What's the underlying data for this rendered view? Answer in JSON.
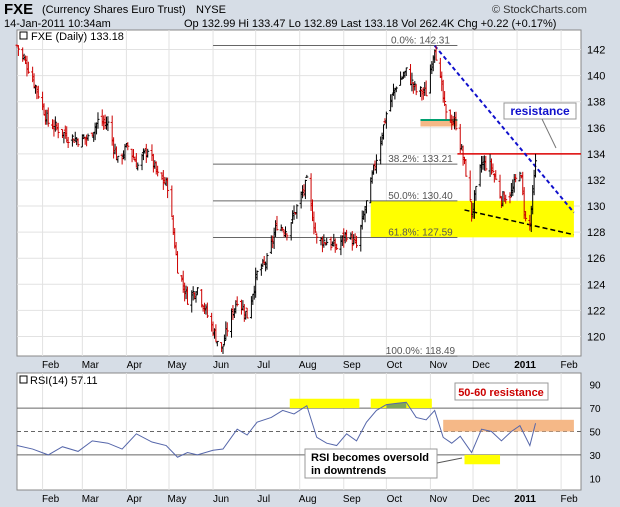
{
  "header": {
    "symbol": "FXE",
    "description": "(Currency Shares Euro Trust)",
    "exchange": "NYSE",
    "credit": "© StockCharts.com",
    "date": "14-Jan-2011 10:34am",
    "quote": "Op 132.99  Hi 133.47  Lo 132.89  Last 133.18  Vol 262.4K  Chg +0.22 (+0.17%)"
  },
  "colors": {
    "up": "#000000",
    "down": "#cc0000",
    "trendline": "#1010cc",
    "resistance_line": "#dd0000",
    "fib_line": "#666666",
    "yellow_zone": "#ffff00",
    "orange_zone": "#f5b887",
    "green_line": "#00a070",
    "rsi_line": "#5566aa",
    "rsi_fill": "#5f8f6f"
  },
  "chart_data": [
    {
      "type": "bar",
      "subtype": "ohlc",
      "legend": "FXE (Daily) 133.18",
      "ylim": [
        118.5,
        143.5
      ],
      "yticks": [
        120,
        122,
        124,
        126,
        128,
        130,
        132,
        134,
        136,
        138,
        140,
        142
      ],
      "xlabels": [
        "Feb",
        "Mar",
        "Apr",
        "May",
        "Jun",
        "Jul",
        "Aug",
        "Sep",
        "Oct",
        "Nov",
        "Dec",
        "2011",
        "Feb"
      ],
      "x_range": [
        "2010-01-14",
        "2011-02-15"
      ],
      "month_ticks": [
        "2010-02-01",
        "2010-03-01",
        "2010-04-01",
        "2010-05-01",
        "2010-06-01",
        "2010-07-01",
        "2010-08-01",
        "2010-09-01",
        "2010-10-01",
        "2010-11-01",
        "2010-12-01",
        "2011-01-01",
        "2011-02-01"
      ],
      "closes": [
        {
          "date": "2010-01-14",
          "close": 142.3
        },
        {
          "date": "2010-01-22",
          "close": 140.6
        },
        {
          "date": "2010-01-29",
          "close": 138.6
        },
        {
          "date": "2010-02-05",
          "close": 136.4
        },
        {
          "date": "2010-02-12",
          "close": 135.9
        },
        {
          "date": "2010-02-19",
          "close": 135.3
        },
        {
          "date": "2010-02-26",
          "close": 135.1
        },
        {
          "date": "2010-03-05",
          "close": 135.2
        },
        {
          "date": "2010-03-12",
          "close": 136.5
        },
        {
          "date": "2010-03-19",
          "close": 136.3
        },
        {
          "date": "2010-03-26",
          "close": 133.4
        },
        {
          "date": "2010-04-02",
          "close": 134.6
        },
        {
          "date": "2010-04-09",
          "close": 133.1
        },
        {
          "date": "2010-04-16",
          "close": 134.4
        },
        {
          "date": "2010-04-23",
          "close": 132.3
        },
        {
          "date": "2010-04-30",
          "close": 131.6
        },
        {
          "date": "2010-05-07",
          "close": 125.3
        },
        {
          "date": "2010-05-14",
          "close": 122.9
        },
        {
          "date": "2010-05-21",
          "close": 123.7
        },
        {
          "date": "2010-05-28",
          "close": 121.6
        },
        {
          "date": "2010-06-07",
          "close": 118.9
        },
        {
          "date": "2010-06-11",
          "close": 120.6
        },
        {
          "date": "2010-06-18",
          "close": 122.9
        },
        {
          "date": "2010-06-25",
          "close": 121.6
        },
        {
          "date": "2010-07-02",
          "close": 124.8
        },
        {
          "date": "2010-07-09",
          "close": 125.8
        },
        {
          "date": "2010-07-16",
          "close": 128.6
        },
        {
          "date": "2010-07-23",
          "close": 128.1
        },
        {
          "date": "2010-07-30",
          "close": 129.9
        },
        {
          "date": "2010-08-06",
          "close": 131.8
        },
        {
          "date": "2010-08-13",
          "close": 127.4
        },
        {
          "date": "2010-08-20",
          "close": 127.3
        },
        {
          "date": "2010-08-27",
          "close": 126.8
        },
        {
          "date": "2010-09-03",
          "close": 127.9
        },
        {
          "date": "2010-09-10",
          "close": 126.9
        },
        {
          "date": "2010-09-17",
          "close": 130.2
        },
        {
          "date": "2010-09-24",
          "close": 133.7
        },
        {
          "date": "2010-10-01",
          "close": 137.1
        },
        {
          "date": "2010-10-08",
          "close": 139.3
        },
        {
          "date": "2010-10-15",
          "close": 140.3
        },
        {
          "date": "2010-10-22",
          "close": 138.8
        },
        {
          "date": "2010-10-29",
          "close": 138.7
        },
        {
          "date": "2010-11-04",
          "close": 142.3
        },
        {
          "date": "2010-11-12",
          "close": 136.9
        },
        {
          "date": "2010-11-19",
          "close": 136.3
        },
        {
          "date": "2010-11-26",
          "close": 132.6
        },
        {
          "date": "2010-11-30",
          "close": 129.4
        },
        {
          "date": "2010-12-07",
          "close": 133.3
        },
        {
          "date": "2010-12-14",
          "close": 133.0
        },
        {
          "date": "2010-12-21",
          "close": 130.6
        },
        {
          "date": "2010-12-28",
          "close": 131.0
        },
        {
          "date": "2011-01-03",
          "close": 132.9
        },
        {
          "date": "2011-01-07",
          "close": 128.9
        },
        {
          "date": "2011-01-10",
          "close": 128.6
        },
        {
          "date": "2011-01-14",
          "close": 133.2
        }
      ],
      "fib_levels": [
        {
          "label": "0.0%: 142.31",
          "value": 142.31
        },
        {
          "label": "38.2%: 133.21",
          "value": 133.21
        },
        {
          "label": "50.0%: 130.40",
          "value": 130.4
        },
        {
          "label": "61.8%: 127.59",
          "value": 127.59
        },
        {
          "label": "100.0%: 118.49",
          "value": 118.49
        }
      ],
      "annotations": {
        "resistance_label": "resistance",
        "resistance_level": 134.0,
        "yellow_zone": {
          "from_date": "2010-09-20",
          "to_date": "2011-02-10",
          "low": 127.6,
          "high": 130.4
        },
        "orange_zone": {
          "from_date": "2010-10-25",
          "to_date": "2010-11-20",
          "low": 136.1,
          "high": 136.6
        },
        "green_line": {
          "from_date": "2010-10-25",
          "to_date": "2010-11-20",
          "value": 136.6
        },
        "trendline": {
          "from_date": "2010-11-04",
          "from_value": 142.3,
          "to_date": "2011-02-10",
          "to_value": 129.5
        },
        "support_trendline": {
          "from_date": "2010-11-25",
          "from_value": 129.7,
          "to_date": "2011-02-10",
          "to_value": 127.8
        }
      }
    },
    {
      "type": "line",
      "legend": "RSI(14) 57.11",
      "ylim": [
        0,
        100
      ],
      "yticks": [
        10,
        30,
        50,
        70,
        90
      ],
      "reference_lines": [
        30,
        50,
        70
      ],
      "rsi": [
        {
          "date": "2010-01-14",
          "value": 38
        },
        {
          "date": "2010-01-25",
          "value": 35
        },
        {
          "date": "2010-02-05",
          "value": 30
        },
        {
          "date": "2010-02-15",
          "value": 37
        },
        {
          "date": "2010-02-26",
          "value": 33
        },
        {
          "date": "2010-03-08",
          "value": 42
        },
        {
          "date": "2010-03-19",
          "value": 40
        },
        {
          "date": "2010-03-29",
          "value": 35
        },
        {
          "date": "2010-04-08",
          "value": 48
        },
        {
          "date": "2010-04-19",
          "value": 41
        },
        {
          "date": "2010-04-29",
          "value": 38
        },
        {
          "date": "2010-05-07",
          "value": 28
        },
        {
          "date": "2010-05-14",
          "value": 32
        },
        {
          "date": "2010-05-21",
          "value": 30
        },
        {
          "date": "2010-06-01",
          "value": 34
        },
        {
          "date": "2010-06-08",
          "value": 35
        },
        {
          "date": "2010-06-18",
          "value": 52
        },
        {
          "date": "2010-06-25",
          "value": 47
        },
        {
          "date": "2010-07-02",
          "value": 58
        },
        {
          "date": "2010-07-12",
          "value": 62
        },
        {
          "date": "2010-07-20",
          "value": 68
        },
        {
          "date": "2010-07-28",
          "value": 65
        },
        {
          "date": "2010-08-06",
          "value": 72
        },
        {
          "date": "2010-08-13",
          "value": 45
        },
        {
          "date": "2010-08-20",
          "value": 40
        },
        {
          "date": "2010-08-27",
          "value": 38
        },
        {
          "date": "2010-09-03",
          "value": 48
        },
        {
          "date": "2010-09-10",
          "value": 42
        },
        {
          "date": "2010-09-17",
          "value": 58
        },
        {
          "date": "2010-09-24",
          "value": 68
        },
        {
          "date": "2010-10-01",
          "value": 73
        },
        {
          "date": "2010-10-08",
          "value": 74
        },
        {
          "date": "2010-10-15",
          "value": 75
        },
        {
          "date": "2010-10-22",
          "value": 62
        },
        {
          "date": "2010-10-29",
          "value": 60
        },
        {
          "date": "2010-11-04",
          "value": 68
        },
        {
          "date": "2010-11-10",
          "value": 45
        },
        {
          "date": "2010-11-16",
          "value": 40
        },
        {
          "date": "2010-11-22",
          "value": 46
        },
        {
          "date": "2010-11-30",
          "value": 32
        },
        {
          "date": "2010-12-07",
          "value": 52
        },
        {
          "date": "2010-12-14",
          "value": 50
        },
        {
          "date": "2010-12-21",
          "value": 42
        },
        {
          "date": "2010-12-28",
          "value": 50
        },
        {
          "date": "2011-01-03",
          "value": 55
        },
        {
          "date": "2011-01-10",
          "value": 38
        },
        {
          "date": "2011-01-14",
          "value": 57
        }
      ],
      "annotations": {
        "resistance_label": "50-60 resistance",
        "oversold_label_line1": "RSI becomes oversold",
        "oversold_label_line2": "in downtrends",
        "yellow_zones": [
          {
            "from_date": "2010-07-25",
            "to_date": "2010-09-12",
            "low": 70,
            "high": 78
          },
          {
            "from_date": "2010-09-20",
            "to_date": "2010-11-02",
            "low": 70,
            "high": 78
          },
          {
            "from_date": "2010-11-25",
            "to_date": "2010-12-20",
            "low": 22,
            "high": 30
          }
        ],
        "orange_zone": {
          "from_date": "2010-11-10",
          "to_date": "2011-02-10",
          "low": 50,
          "high": 60
        }
      }
    }
  ]
}
